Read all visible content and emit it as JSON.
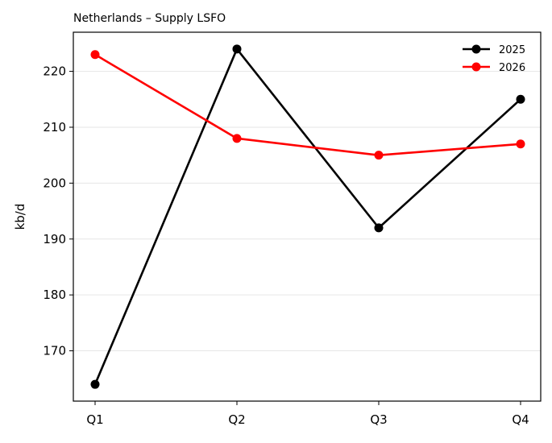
{
  "chart_data": {
    "type": "line",
    "title": "Netherlands – Supply LSFO",
    "xlabel": "",
    "ylabel": "kb/d",
    "categories": [
      "Q1",
      "Q2",
      "Q3",
      "Q4"
    ],
    "yticks": [
      170,
      180,
      190,
      200,
      210,
      220
    ],
    "ylim": [
      161,
      227
    ],
    "grid": "horizontal",
    "legend": "top-right",
    "series": [
      {
        "name": "2025",
        "color": "#000000",
        "values": [
          164,
          224,
          192,
          215
        ]
      },
      {
        "name": "2026",
        "color": "#ff0000",
        "values": [
          223,
          208,
          205,
          207
        ]
      }
    ]
  }
}
